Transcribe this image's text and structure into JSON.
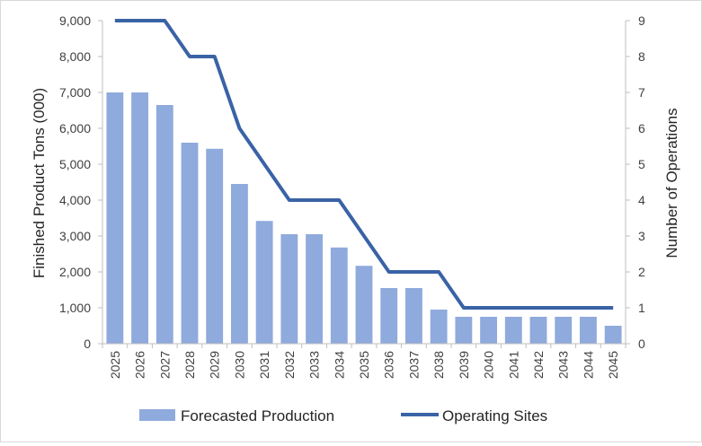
{
  "chart_data": {
    "type": "bar",
    "title": "",
    "categories": [
      "2025",
      "2026",
      "2027",
      "2028",
      "2029",
      "2030",
      "2031",
      "2032",
      "2033",
      "2034",
      "2035",
      "2036",
      "2037",
      "2038",
      "2039",
      "2040",
      "2041",
      "2042",
      "2043",
      "2044",
      "2045"
    ],
    "series": [
      {
        "name": "Forecasted Production",
        "type": "bar",
        "axis": "left",
        "color": "#8FAADC",
        "values": [
          7000,
          7000,
          6650,
          5600,
          5430,
          4450,
          3420,
          3050,
          3050,
          2680,
          2170,
          1550,
          1550,
          950,
          750,
          750,
          750,
          750,
          750,
          750,
          500
        ]
      },
      {
        "name": "Operating Sites",
        "type": "line",
        "axis": "right",
        "color": "#3A63A6",
        "values": [
          9,
          9,
          9,
          8,
          8,
          6,
          5,
          4,
          4,
          4,
          3,
          2,
          2,
          2,
          1,
          1,
          1,
          1,
          1,
          1,
          1
        ]
      }
    ],
    "ylabel": "Finished Product Tons (000)",
    "y2label": "Number of Operations",
    "ylim": [
      0,
      9000
    ],
    "y2lim": [
      0,
      9
    ],
    "yticks": [
      "0",
      "1,000",
      "2,000",
      "3,000",
      "4,000",
      "5,000",
      "6,000",
      "7,000",
      "8,000",
      "9,000"
    ],
    "y2ticks": [
      "0",
      "1",
      "2",
      "3",
      "4",
      "5",
      "6",
      "7",
      "8",
      "9"
    ],
    "grid": false,
    "legend": {
      "position": "bottom",
      "items": [
        "Forecasted Production",
        "Operating Sites"
      ]
    }
  }
}
